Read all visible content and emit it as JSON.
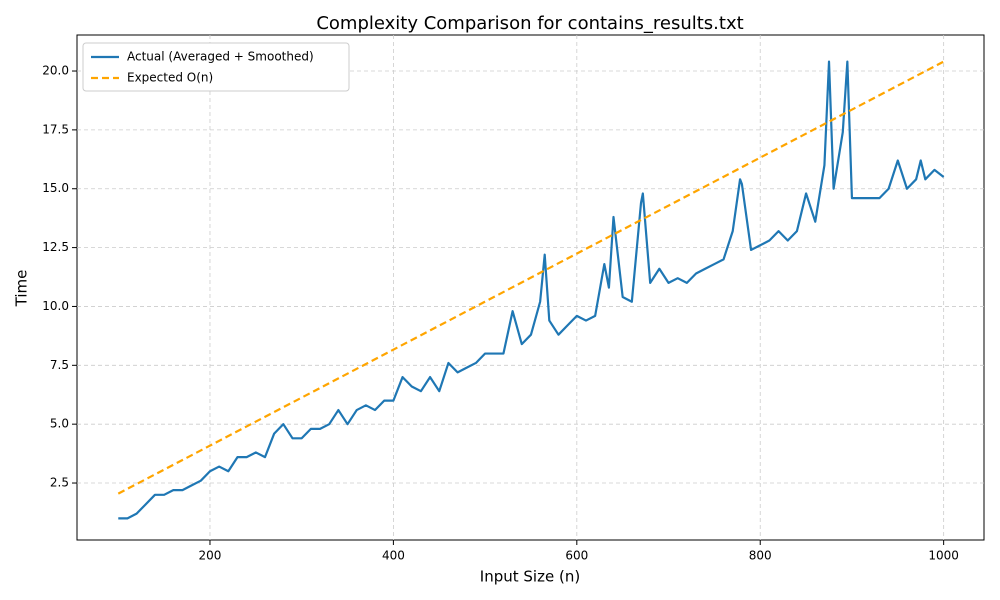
{
  "chart_data": {
    "type": "line",
    "title": "Complexity Comparison for contains_results.txt",
    "xlabel": "Input Size (n)",
    "ylabel": "Time",
    "xlim": [
      55,
      1044
    ],
    "ylim": [
      0.08,
      21.53
    ],
    "xticks": [
      200,
      400,
      600,
      800,
      1000
    ],
    "yticks": [
      2.5,
      {
        "value": 5,
        "label": "5.0"
      },
      7.5,
      {
        "value": 10,
        "label": "10.0"
      },
      12.5,
      {
        "value": 15,
        "label": "15.0"
      },
      17.5,
      {
        "value": 20,
        "label": "20.0"
      }
    ],
    "grid": true,
    "legend": "upper left",
    "series": [
      {
        "name": "Actual (Averaged + Smoothed)",
        "color": "#1f77b4",
        "dashed": false,
        "x": [
          100,
          110,
          120,
          130,
          140,
          150,
          160,
          170,
          180,
          190,
          200,
          210,
          220,
          230,
          240,
          250,
          260,
          270,
          280,
          290,
          300,
          310,
          320,
          330,
          340,
          350,
          360,
          370,
          380,
          390,
          400,
          410,
          420,
          430,
          440,
          450,
          460,
          470,
          480,
          490,
          500,
          510,
          520,
          530,
          540,
          550,
          560,
          565,
          570,
          580,
          590,
          600,
          610,
          620,
          630,
          635,
          640,
          650,
          660,
          670,
          672,
          680,
          690,
          700,
          710,
          720,
          730,
          740,
          750,
          760,
          770,
          778,
          780,
          790,
          800,
          810,
          820,
          830,
          840,
          850,
          860,
          870,
          875,
          880,
          890,
          895,
          900,
          910,
          920,
          930,
          940,
          950,
          960,
          970,
          975,
          980,
          990,
          1000
        ],
        "values": [
          1.0,
          1.0,
          1.2,
          1.6,
          2.0,
          2.0,
          2.2,
          2.2,
          2.4,
          2.6,
          3.0,
          3.2,
          3.0,
          3.6,
          3.6,
          3.8,
          3.6,
          4.6,
          5.0,
          4.4,
          4.4,
          4.8,
          4.8,
          5.0,
          5.6,
          5.0,
          5.6,
          5.8,
          5.6,
          6.0,
          6.0,
          7.0,
          6.6,
          6.4,
          7.0,
          6.4,
          7.6,
          7.2,
          7.4,
          7.6,
          8.0,
          8.0,
          8.0,
          9.8,
          8.4,
          8.8,
          10.2,
          12.2,
          9.4,
          8.8,
          9.2,
          9.6,
          9.4,
          9.6,
          11.8,
          10.8,
          13.8,
          10.4,
          10.2,
          14.4,
          14.8,
          11.0,
          11.6,
          11.0,
          11.2,
          11.0,
          11.4,
          11.6,
          11.8,
          12.0,
          13.2,
          15.4,
          15.2,
          12.4,
          12.6,
          12.8,
          13.2,
          12.8,
          13.2,
          14.8,
          13.6,
          16.0,
          20.4,
          15.0,
          17.4,
          20.4,
          14.6,
          14.6,
          14.6,
          14.6,
          15.0,
          16.2,
          15.0,
          15.4,
          16.2,
          15.4,
          15.8,
          15.5
        ]
      },
      {
        "name": "Expected O(n)",
        "color": "#ffa500",
        "dashed": true,
        "x": [
          100,
          1000
        ],
        "values": [
          2.05,
          20.4
        ]
      }
    ]
  }
}
